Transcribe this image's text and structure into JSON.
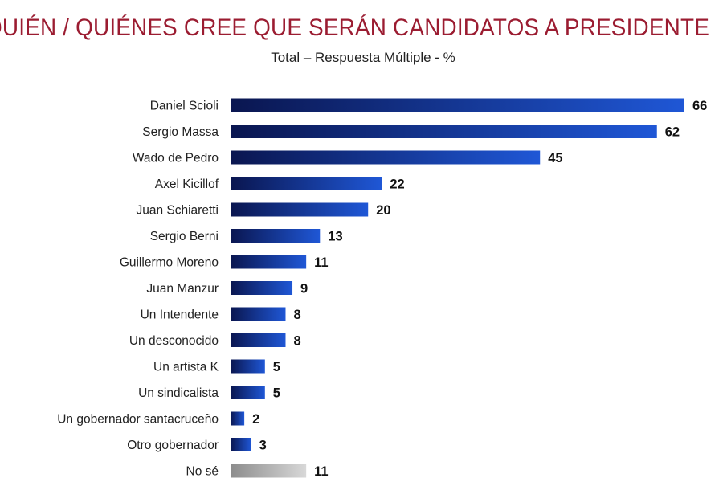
{
  "chart_data": {
    "type": "bar",
    "orientation": "horizontal",
    "title": "QUIÉN / QUIÉNES CREE QUE SERÁN CANDIDATOS A PRESIDENTE",
    "subtitle": "Total – Respuesta Múltiple - %",
    "categories": [
      "Daniel Scioli",
      "Sergio Massa",
      "Wado de Pedro",
      "Axel Kicillof",
      "Juan Schiaretti",
      "Sergio Berni",
      "Guillermo Moreno",
      "Juan Manzur",
      "Un Intendente",
      "Un desconocido",
      "Un artista K",
      "Un sindicalista",
      "Un gobernador santacruceño",
      "Otro gobernador",
      "No sé"
    ],
    "values": [
      66,
      62,
      45,
      22,
      20,
      13,
      11,
      9,
      8,
      8,
      5,
      5,
      2,
      3,
      11
    ],
    "xlim": [
      0,
      66
    ],
    "grid": false,
    "colors": {
      "bar_start": "#0a1650",
      "bar_end": "#1f57d6",
      "neutral_start": "#8c8c8c",
      "neutral_end": "#d8d8d8",
      "title": "#9b1c31"
    }
  }
}
